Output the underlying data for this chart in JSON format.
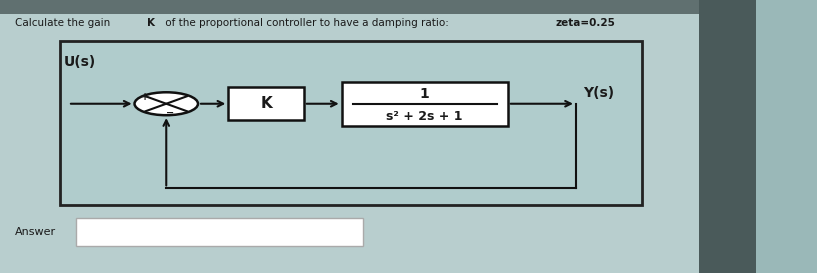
{
  "bg_outer": "#8aa8a8",
  "bg_main": "#9ab8b8",
  "bg_diagram": "#a8c0c0",
  "bg_diagram_inner": "#c0d4d4",
  "title_normal": "Calculate the gain ",
  "title_bold_K": "K",
  "title_normal2": " of the proportional controller to have a damping ratio: ",
  "title_bold_zeta": "zeta=0.25",
  "U_label": "U(s)",
  "Y_label": "Y(s)",
  "K_label": "K",
  "tf_num": "1",
  "tf_den": "s² + 2s + 1",
  "answer_label": "Answer",
  "text_color": "#1a1a1a",
  "line_color": "#111111",
  "box_facecolor": "white",
  "diagram_border": "#222222",
  "answer_box_color": "#cccccc"
}
